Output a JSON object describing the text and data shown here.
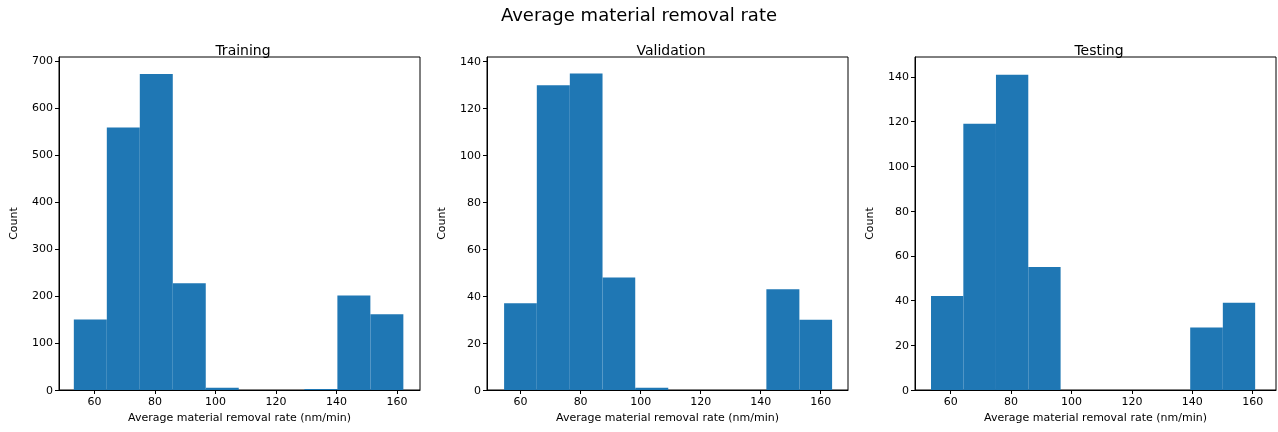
{
  "chart_data": [
    {
      "type": "histogram",
      "title": "Training",
      "xlabel": "Average material removal rate (nm/min)",
      "ylabel": "Count",
      "annotations": [
        "Average material removal rate"
      ],
      "color": "#1f77b4",
      "bins": [
        53.2,
        64.1,
        75.0,
        85.9,
        96.8,
        107.7,
        118.5,
        129.4,
        140.3,
        151.2,
        162.1
      ],
      "values": [
        150,
        558,
        672,
        227,
        5,
        0,
        0,
        2,
        201,
        161
      ],
      "xlim": [
        48.3,
        167.6
      ],
      "xticks": [
        60,
        80,
        100,
        120,
        140,
        160
      ],
      "ylim": [
        0,
        708
      ],
      "yticks": [
        0,
        100,
        200,
        300,
        400,
        500,
        600,
        700
      ],
      "grid": false
    },
    {
      "type": "histogram",
      "title": "Validation",
      "xlabel": "Average material removal rate (nm/min)",
      "ylabel": "Count",
      "color": "#1f77b4",
      "bins": [
        54.5,
        65.4,
        76.4,
        87.3,
        98.2,
        109.2,
        120.1,
        131.0,
        141.9,
        152.9,
        163.8
      ],
      "values": [
        37,
        130,
        135,
        48,
        1,
        0,
        0,
        0,
        43,
        30
      ],
      "xlim": [
        48.8,
        169.1
      ],
      "xticks": [
        60,
        80,
        100,
        120,
        140,
        160
      ],
      "ylim": [
        0,
        142
      ],
      "yticks": [
        0,
        20,
        40,
        60,
        80,
        100,
        120,
        140
      ],
      "grid": false
    },
    {
      "type": "histogram",
      "title": "Testing",
      "xlabel": "Average material removal rate (nm/min)",
      "ylabel": "Count",
      "color": "#1f77b4",
      "bins": [
        53.5,
        64.2,
        75.0,
        85.7,
        96.4,
        107.2,
        117.9,
        128.6,
        139.3,
        150.1,
        160.8
      ],
      "values": [
        42,
        119,
        141,
        55,
        0,
        0,
        0,
        0,
        28,
        39
      ],
      "xlim": [
        48.2,
        167.7
      ],
      "xticks": [
        60,
        80,
        100,
        120,
        140,
        160
      ],
      "ylim": [
        0,
        148.9
      ],
      "yticks": [
        0,
        20,
        40,
        60,
        80,
        100,
        120,
        140
      ],
      "grid": false
    }
  ]
}
